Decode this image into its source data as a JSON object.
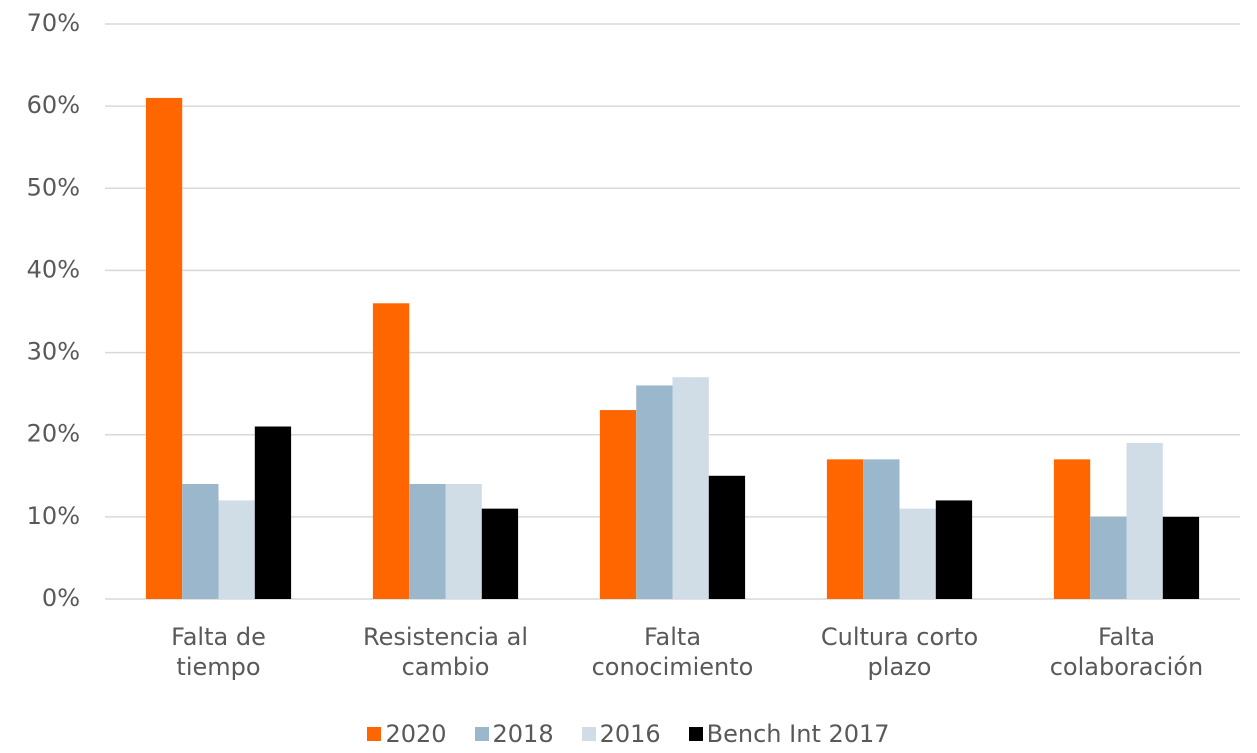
{
  "chart_data": {
    "type": "bar",
    "categories": [
      "Falta de\ntiempo",
      "Resistencia al\ncambio",
      "Falta\nconocimiento",
      "Cultura corto\nplazo",
      "Falta\ncolaboración"
    ],
    "series": [
      {
        "name": "2020",
        "color": "#ff6600",
        "values": [
          61,
          36,
          23,
          17,
          17
        ]
      },
      {
        "name": "2018",
        "color": "#9ab7cb",
        "values": [
          14,
          14,
          26,
          17,
          10
        ]
      },
      {
        "name": "2016",
        "color": "#d0dce6",
        "values": [
          12,
          14,
          27,
          11,
          19
        ]
      },
      {
        "name": "Bench Int 2017",
        "color": "#000000",
        "values": [
          21,
          11,
          15,
          12,
          10
        ]
      }
    ],
    "ylim": [
      0,
      70
    ],
    "yticks": [
      {
        "value": 0,
        "label": "0%"
      },
      {
        "value": 10,
        "label": "10%"
      },
      {
        "value": 20,
        "label": "20%"
      },
      {
        "value": 30,
        "label": "30%"
      },
      {
        "value": 40,
        "label": "40%"
      },
      {
        "value": 50,
        "label": "50%"
      },
      {
        "value": 60,
        "label": "60%"
      },
      {
        "value": 70,
        "label": "70%"
      }
    ],
    "grid": true,
    "legend": "bottom"
  }
}
